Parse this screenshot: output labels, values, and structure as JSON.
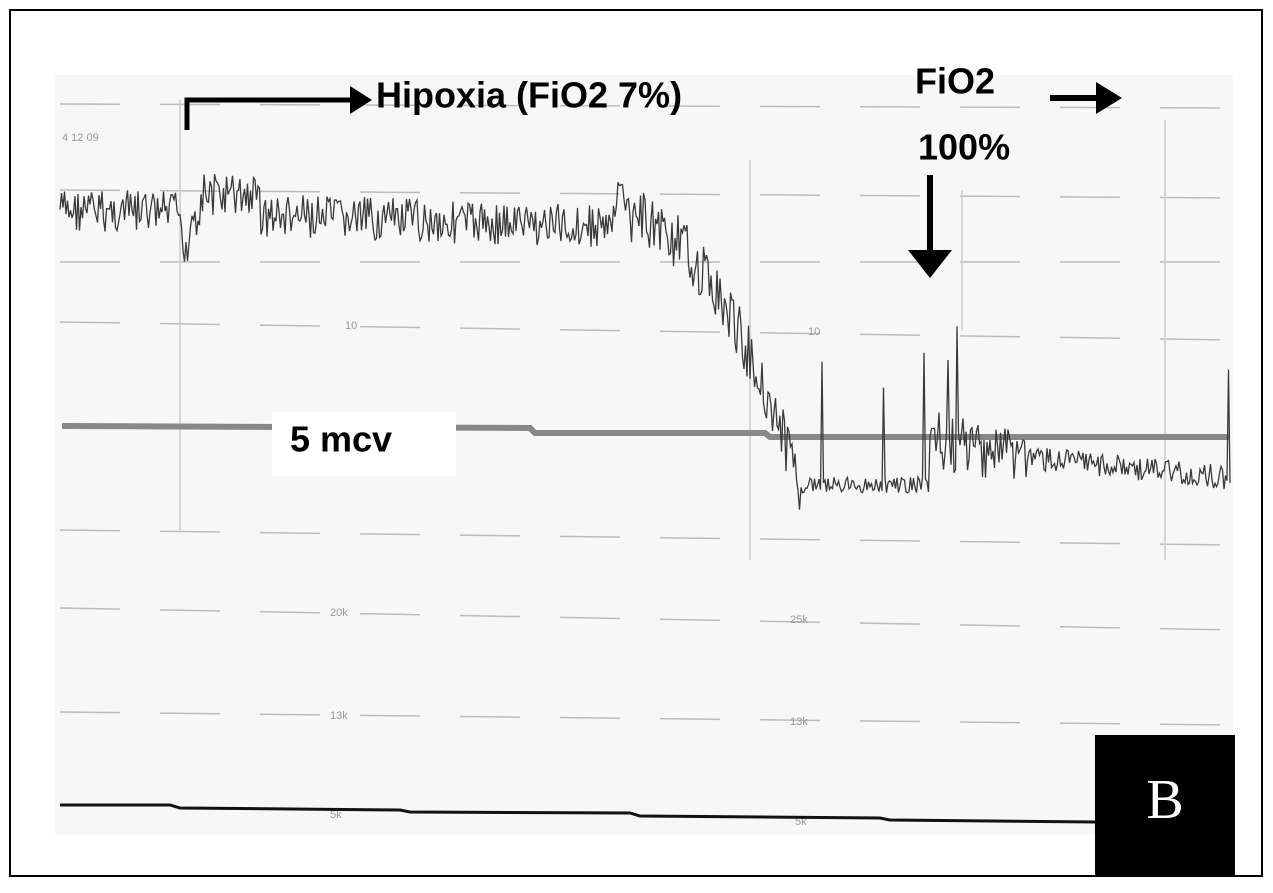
{
  "panel_label": "B",
  "annotations": {
    "hypoxia": "Hipoxia (FiO2 7%)",
    "fio2": "FiO2",
    "fio2_value": "100%",
    "scale": "5 mcv"
  },
  "strip_labels": {
    "date": "4 12 09",
    "upper_left": "10",
    "upper_right": "10",
    "mid_left": "20k",
    "mid_right": "25k",
    "lower_left": "13k",
    "lower_right": "13k",
    "bottom_left": "5k",
    "bottom_right": "5k"
  }
}
